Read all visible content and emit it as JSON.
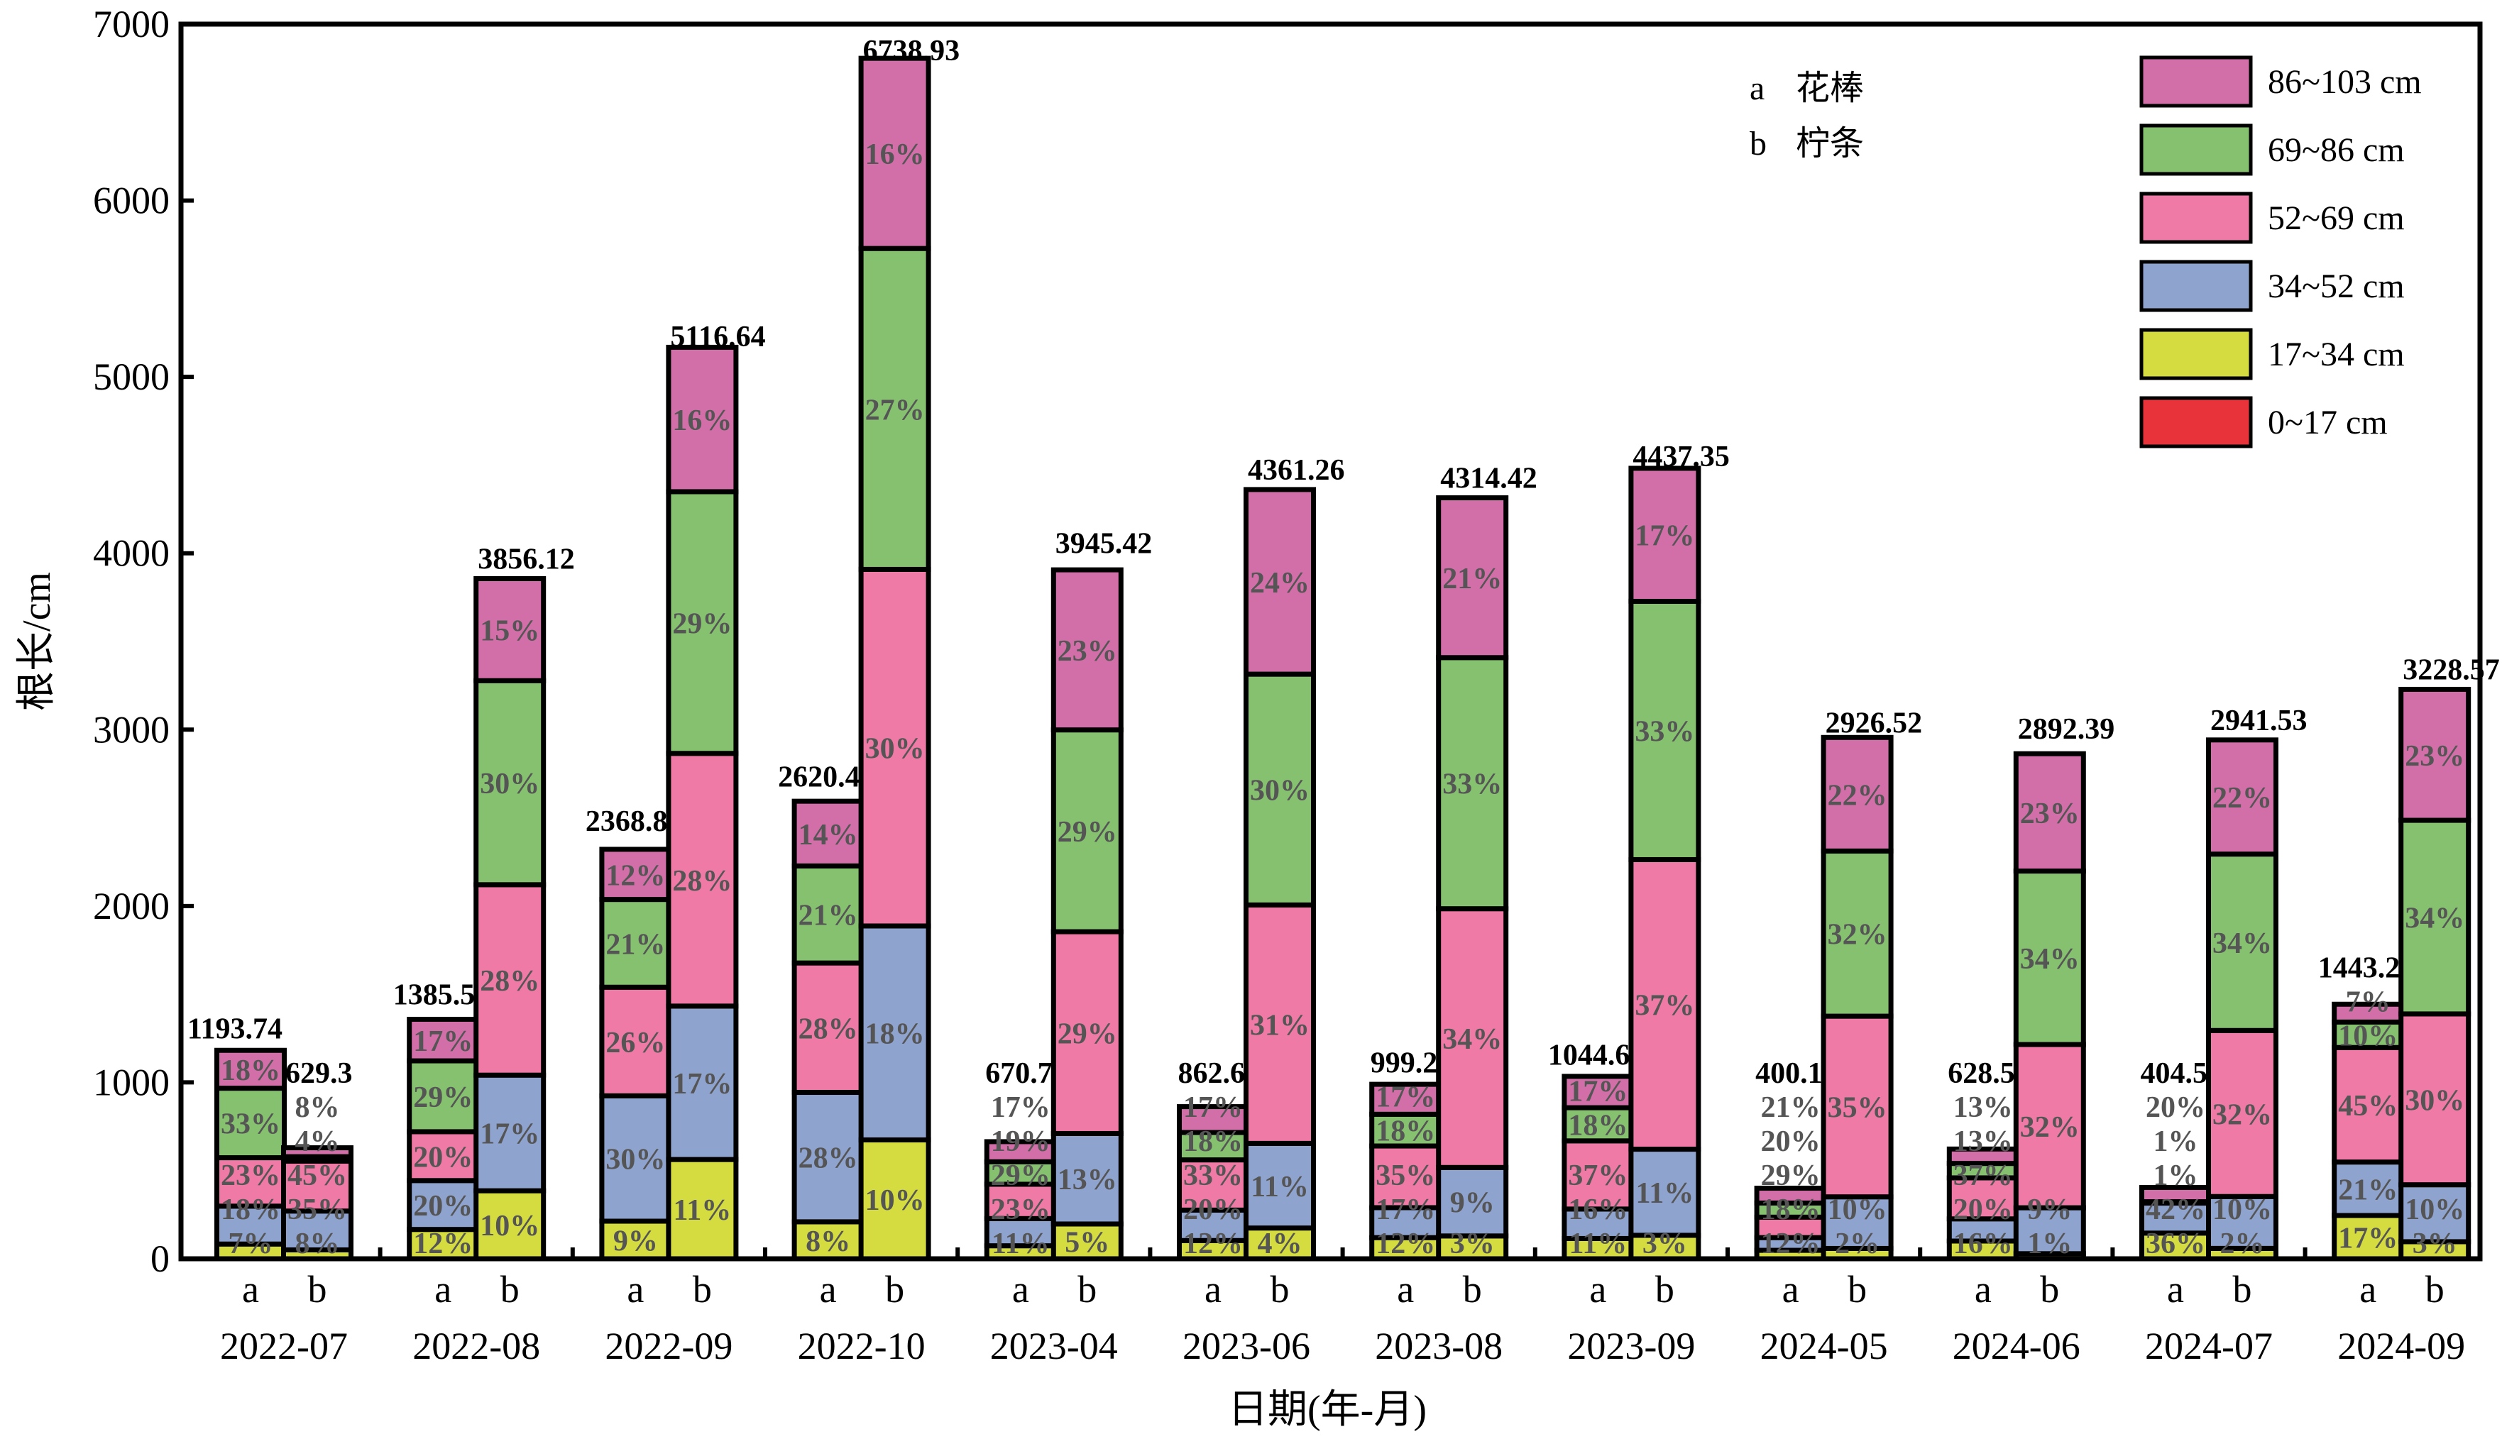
{
  "chart_data": {
    "type": "bar",
    "stacked": true,
    "title": "",
    "xlabel": "日期(年-月)",
    "ylabel": "根长/cm",
    "ylim": [
      0,
      7000
    ],
    "yticks": [
      0,
      1000,
      2000,
      3000,
      4000,
      5000,
      6000,
      7000
    ],
    "categories": [
      "2022-07",
      "2022-08",
      "2022-09",
      "2022-10",
      "2023-04",
      "2023-06",
      "2023-08",
      "2023-09",
      "2024-05",
      "2024-06",
      "2024-07",
      "2024-09"
    ],
    "bar_keys": [
      "a",
      "b"
    ],
    "species_legend": [
      {
        "key": "a",
        "name": "花棒"
      },
      {
        "key": "b",
        "name": "柠条"
      }
    ],
    "layers": [
      {
        "name": "0~17 cm",
        "color": "#e8333a"
      },
      {
        "name": "17~34 cm",
        "color": "#d4dc3f"
      },
      {
        "name": "34~52 cm",
        "color": "#8fa3cf"
      },
      {
        "name": "52~69 cm",
        "color": "#ef7aa5"
      },
      {
        "name": "69~86 cm",
        "color": "#86c170"
      },
      {
        "name": "86~103 cm",
        "color": "#d36fa8"
      }
    ],
    "legend_position": "top-right",
    "bars": [
      {
        "category": "2022-07",
        "key": "a",
        "total": 1193.74,
        "label": "1193.74",
        "percents": [
          0,
          7,
          18,
          23,
          33,
          18
        ]
      },
      {
        "category": "2022-07",
        "key": "b",
        "total": 629.3,
        "label": "629.3",
        "percents": [
          0,
          8,
          35,
          45,
          4,
          8
        ]
      },
      {
        "category": "2022-08",
        "key": "a",
        "total": 1385.5,
        "label": "1385.5",
        "percents": [
          0,
          12,
          20,
          20,
          29,
          17
        ]
      },
      {
        "category": "2022-08",
        "key": "b",
        "total": 3856.12,
        "label": "3856.12",
        "percents": [
          0,
          10,
          17,
          28,
          30,
          15
        ]
      },
      {
        "category": "2022-09",
        "key": "a",
        "total": 2368.8,
        "label": "2368.8",
        "percents": [
          0,
          9,
          30,
          26,
          21,
          12
        ]
      },
      {
        "category": "2022-09",
        "key": "b",
        "total": 5116.64,
        "label": "5116.64",
        "percents": [
          0,
          11,
          17,
          28,
          29,
          16
        ]
      },
      {
        "category": "2022-10",
        "key": "a",
        "total": 2620.4,
        "label": "2620.4",
        "percents": [
          0,
          8,
          28,
          28,
          21,
          14
        ]
      },
      {
        "category": "2022-10",
        "key": "b",
        "total": 6738.93,
        "label": "6738.93",
        "percents": [
          0,
          10,
          18,
          30,
          27,
          16
        ]
      },
      {
        "category": "2023-04",
        "key": "a",
        "total": 670.7,
        "label": "670.7",
        "percents": [
          0,
          11,
          23,
          29,
          19,
          17
        ]
      },
      {
        "category": "2023-04",
        "key": "b",
        "total": 3945.42,
        "label": "3945.42",
        "percents": [
          0,
          5,
          13,
          29,
          29,
          23
        ]
      },
      {
        "category": "2023-06",
        "key": "a",
        "total": 862.6,
        "label": "862.6",
        "percents": [
          0,
          12,
          20,
          33,
          18,
          17
        ]
      },
      {
        "category": "2023-06",
        "key": "b",
        "total": 4361.26,
        "label": "4361.26",
        "percents": [
          0,
          4,
          11,
          31,
          30,
          24
        ]
      },
      {
        "category": "2023-08",
        "key": "a",
        "total": 999.2,
        "label": "999.2",
        "percents": [
          0,
          12,
          17,
          35,
          18,
          17
        ]
      },
      {
        "category": "2023-08",
        "key": "b",
        "total": 4314.42,
        "label": "4314.42",
        "percents": [
          0,
          3,
          9,
          34,
          33,
          21
        ]
      },
      {
        "category": "2023-09",
        "key": "a",
        "total": 1044.6,
        "label": "1044.6",
        "percents": [
          0,
          11,
          16,
          37,
          18,
          17
        ]
      },
      {
        "category": "2023-09",
        "key": "b",
        "total": 4437.35,
        "label": "4437.35",
        "percents": [
          0,
          3,
          11,
          37,
          33,
          17
        ]
      },
      {
        "category": "2024-05",
        "key": "a",
        "total": 400.1,
        "label": "400.1",
        "percents": [
          0,
          12,
          18,
          29,
          20,
          21
        ]
      },
      {
        "category": "2024-05",
        "key": "b",
        "total": 2926.52,
        "label": "2926.52",
        "percents": [
          0,
          2,
          10,
          35,
          32,
          22
        ]
      },
      {
        "category": "2024-06",
        "key": "a",
        "total": 628.5,
        "label": "628.5",
        "percents": [
          0,
          16,
          20,
          37,
          13,
          13
        ]
      },
      {
        "category": "2024-06",
        "key": "b",
        "total": 2892.39,
        "label": "2892.39",
        "percents": [
          0,
          1,
          9,
          32,
          34,
          23
        ]
      },
      {
        "category": "2024-07",
        "key": "a",
        "total": 404.5,
        "label": "404.5",
        "percents": [
          0,
          36,
          42,
          1,
          1,
          20
        ]
      },
      {
        "category": "2024-07",
        "key": "b",
        "total": 2941.53,
        "label": "2941.53",
        "percents": [
          0,
          2,
          10,
          32,
          34,
          22
        ]
      },
      {
        "category": "2024-09",
        "key": "a",
        "total": 1443.2,
        "label": "1443.2",
        "percents": [
          0,
          17,
          21,
          45,
          10,
          7
        ]
      },
      {
        "category": "2024-09",
        "key": "b",
        "total": 3228.57,
        "label": "3228.57",
        "percents": [
          0,
          3,
          10,
          30,
          34,
          23
        ]
      }
    ]
  }
}
